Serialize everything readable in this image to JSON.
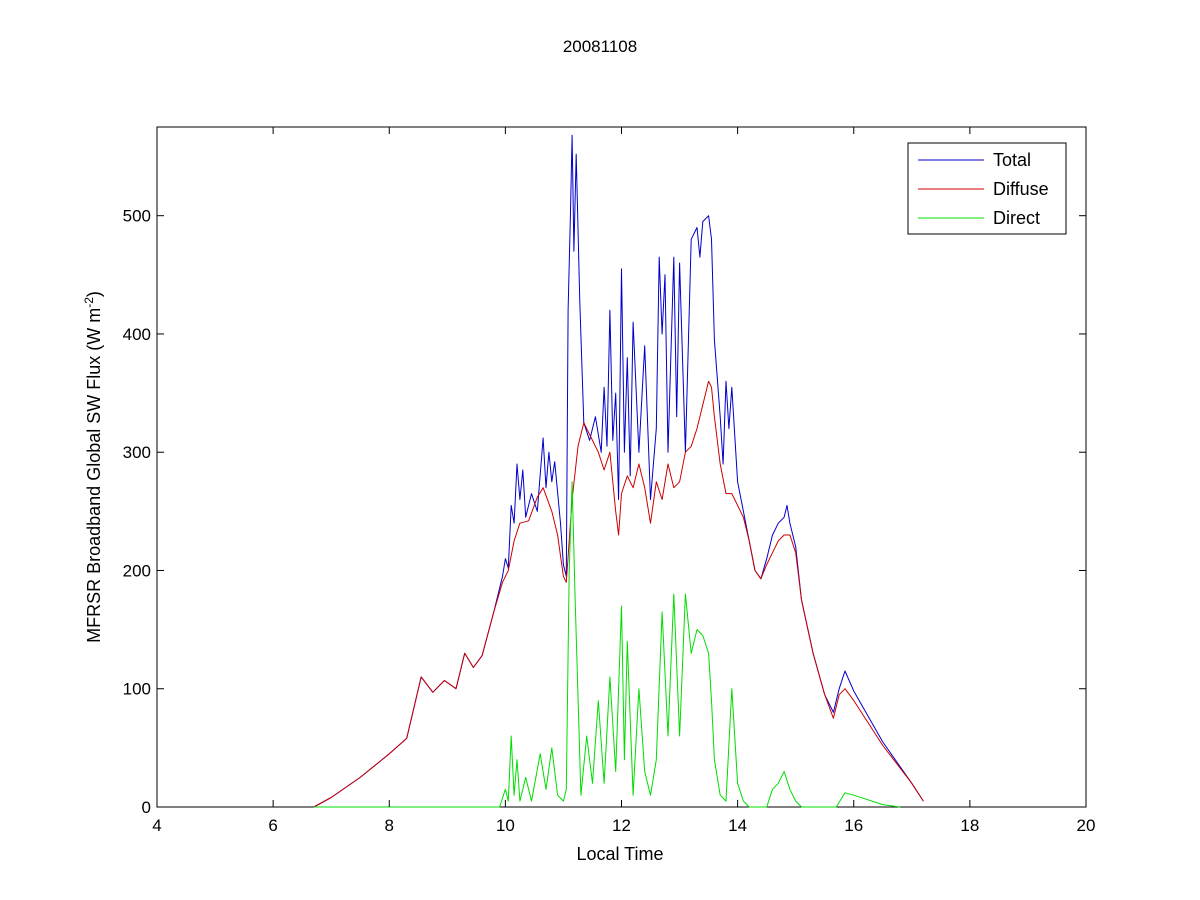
{
  "chart_data": {
    "type": "line",
    "title": "20081108",
    "xlabel": "Local Time",
    "ylabel_main": "MFRSR Broadband Global SW Flux (W m",
    "ylabel_sup": "-2",
    "ylabel_close": ")",
    "xlim": [
      4,
      20
    ],
    "ylim": [
      0,
      575
    ],
    "xticks": [
      4,
      6,
      8,
      10,
      12,
      14,
      16,
      18,
      20
    ],
    "yticks": [
      0,
      100,
      200,
      300,
      400,
      500
    ],
    "grid": false,
    "legend_position": "top-right",
    "series": [
      {
        "name": "Total",
        "color": "#0000cc",
        "points": [
          [
            6.7,
            0
          ],
          [
            7.0,
            8
          ],
          [
            7.5,
            25
          ],
          [
            8.0,
            45
          ],
          [
            8.3,
            58
          ],
          [
            8.55,
            110
          ],
          [
            8.75,
            97
          ],
          [
            8.95,
            107
          ],
          [
            9.15,
            100
          ],
          [
            9.3,
            130
          ],
          [
            9.45,
            118
          ],
          [
            9.6,
            128
          ],
          [
            9.8,
            165
          ],
          [
            9.95,
            195
          ],
          [
            10.0,
            210
          ],
          [
            10.05,
            202
          ],
          [
            10.1,
            255
          ],
          [
            10.15,
            240
          ],
          [
            10.2,
            290
          ],
          [
            10.25,
            260
          ],
          [
            10.3,
            285
          ],
          [
            10.35,
            245
          ],
          [
            10.45,
            265
          ],
          [
            10.55,
            250
          ],
          [
            10.65,
            312
          ],
          [
            10.7,
            270
          ],
          [
            10.75,
            300
          ],
          [
            10.8,
            275
          ],
          [
            10.85,
            292
          ],
          [
            10.95,
            240
          ],
          [
            11.0,
            205
          ],
          [
            11.05,
            195
          ],
          [
            11.08,
            420
          ],
          [
            11.12,
            500
          ],
          [
            11.15,
            568
          ],
          [
            11.18,
            470
          ],
          [
            11.22,
            552
          ],
          [
            11.28,
            430
          ],
          [
            11.35,
            325
          ],
          [
            11.45,
            310
          ],
          [
            11.55,
            330
          ],
          [
            11.65,
            300
          ],
          [
            11.7,
            355
          ],
          [
            11.75,
            305
          ],
          [
            11.8,
            420
          ],
          [
            11.85,
            310
          ],
          [
            11.9,
            350
          ],
          [
            11.95,
            260
          ],
          [
            12.0,
            455
          ],
          [
            12.05,
            300
          ],
          [
            12.1,
            380
          ],
          [
            12.15,
            280
          ],
          [
            12.2,
            410
          ],
          [
            12.3,
            300
          ],
          [
            12.4,
            390
          ],
          [
            12.5,
            260
          ],
          [
            12.6,
            320
          ],
          [
            12.65,
            465
          ],
          [
            12.7,
            400
          ],
          [
            12.75,
            450
          ],
          [
            12.8,
            300
          ],
          [
            12.9,
            465
          ],
          [
            12.95,
            330
          ],
          [
            13.0,
            460
          ],
          [
            13.1,
            300
          ],
          [
            13.2,
            480
          ],
          [
            13.3,
            490
          ],
          [
            13.35,
            465
          ],
          [
            13.4,
            495
          ],
          [
            13.5,
            500
          ],
          [
            13.55,
            480
          ],
          [
            13.6,
            395
          ],
          [
            13.7,
            330
          ],
          [
            13.75,
            290
          ],
          [
            13.8,
            360
          ],
          [
            13.85,
            320
          ],
          [
            13.9,
            355
          ],
          [
            14.0,
            275
          ],
          [
            14.1,
            250
          ],
          [
            14.2,
            225
          ],
          [
            14.3,
            200
          ],
          [
            14.4,
            193
          ],
          [
            14.5,
            210
          ],
          [
            14.6,
            230
          ],
          [
            14.7,
            240
          ],
          [
            14.8,
            245
          ],
          [
            14.85,
            255
          ],
          [
            14.9,
            240
          ],
          [
            15.0,
            220
          ],
          [
            15.1,
            175
          ],
          [
            15.3,
            130
          ],
          [
            15.5,
            95
          ],
          [
            15.65,
            80
          ],
          [
            15.75,
            100
          ],
          [
            15.85,
            115
          ],
          [
            16.0,
            98
          ],
          [
            16.5,
            55
          ],
          [
            17.0,
            20
          ],
          [
            17.2,
            5
          ]
        ]
      },
      {
        "name": "Diffuse",
        "color": "#cc0000",
        "points": [
          [
            6.7,
            0
          ],
          [
            7.0,
            8
          ],
          [
            7.5,
            25
          ],
          [
            8.0,
            45
          ],
          [
            8.3,
            58
          ],
          [
            8.55,
            110
          ],
          [
            8.75,
            97
          ],
          [
            8.95,
            107
          ],
          [
            9.15,
            100
          ],
          [
            9.3,
            130
          ],
          [
            9.45,
            118
          ],
          [
            9.6,
            128
          ],
          [
            9.8,
            165
          ],
          [
            9.95,
            190
          ],
          [
            10.05,
            200
          ],
          [
            10.15,
            225
          ],
          [
            10.25,
            240
          ],
          [
            10.4,
            242
          ],
          [
            10.55,
            262
          ],
          [
            10.65,
            270
          ],
          [
            10.8,
            250
          ],
          [
            10.9,
            230
          ],
          [
            11.0,
            195
          ],
          [
            11.05,
            190
          ],
          [
            11.15,
            260
          ],
          [
            11.25,
            305
          ],
          [
            11.35,
            325
          ],
          [
            11.5,
            310
          ],
          [
            11.6,
            300
          ],
          [
            11.7,
            285
          ],
          [
            11.8,
            300
          ],
          [
            11.9,
            250
          ],
          [
            11.95,
            230
          ],
          [
            12.0,
            265
          ],
          [
            12.1,
            280
          ],
          [
            12.2,
            270
          ],
          [
            12.3,
            290
          ],
          [
            12.4,
            270
          ],
          [
            12.5,
            240
          ],
          [
            12.6,
            275
          ],
          [
            12.7,
            260
          ],
          [
            12.8,
            290
          ],
          [
            12.9,
            270
          ],
          [
            13.0,
            275
          ],
          [
            13.1,
            300
          ],
          [
            13.2,
            305
          ],
          [
            13.3,
            320
          ],
          [
            13.4,
            340
          ],
          [
            13.5,
            360
          ],
          [
            13.55,
            355
          ],
          [
            13.6,
            330
          ],
          [
            13.7,
            290
          ],
          [
            13.8,
            265
          ],
          [
            13.9,
            265
          ],
          [
            14.0,
            255
          ],
          [
            14.1,
            245
          ],
          [
            14.2,
            225
          ],
          [
            14.3,
            200
          ],
          [
            14.4,
            193
          ],
          [
            14.5,
            205
          ],
          [
            14.6,
            215
          ],
          [
            14.7,
            225
          ],
          [
            14.8,
            230
          ],
          [
            14.9,
            230
          ],
          [
            15.0,
            215
          ],
          [
            15.1,
            175
          ],
          [
            15.3,
            130
          ],
          [
            15.5,
            95
          ],
          [
            15.65,
            75
          ],
          [
            15.75,
            95
          ],
          [
            15.85,
            100
          ],
          [
            16.0,
            90
          ],
          [
            16.5,
            52
          ],
          [
            17.0,
            20
          ],
          [
            17.2,
            5
          ]
        ]
      },
      {
        "name": "Direct",
        "color": "#00dd00",
        "points": [
          [
            6.7,
            0
          ],
          [
            9.9,
            0
          ],
          [
            10.0,
            15
          ],
          [
            10.05,
            5
          ],
          [
            10.1,
            60
          ],
          [
            10.15,
            10
          ],
          [
            10.2,
            40
          ],
          [
            10.25,
            5
          ],
          [
            10.35,
            25
          ],
          [
            10.45,
            5
          ],
          [
            10.6,
            45
          ],
          [
            10.7,
            15
          ],
          [
            10.8,
            50
          ],
          [
            10.9,
            10
          ],
          [
            11.0,
            5
          ],
          [
            11.05,
            15
          ],
          [
            11.1,
            200
          ],
          [
            11.15,
            275
          ],
          [
            11.2,
            180
          ],
          [
            11.3,
            10
          ],
          [
            11.4,
            60
          ],
          [
            11.5,
            20
          ],
          [
            11.6,
            90
          ],
          [
            11.7,
            20
          ],
          [
            11.8,
            110
          ],
          [
            11.9,
            30
          ],
          [
            12.0,
            170
          ],
          [
            12.05,
            40
          ],
          [
            12.1,
            140
          ],
          [
            12.2,
            10
          ],
          [
            12.3,
            100
          ],
          [
            12.4,
            30
          ],
          [
            12.5,
            10
          ],
          [
            12.6,
            40
          ],
          [
            12.7,
            165
          ],
          [
            12.8,
            60
          ],
          [
            12.9,
            180
          ],
          [
            13.0,
            60
          ],
          [
            13.1,
            180
          ],
          [
            13.2,
            130
          ],
          [
            13.3,
            150
          ],
          [
            13.4,
            145
          ],
          [
            13.5,
            130
          ],
          [
            13.55,
            90
          ],
          [
            13.6,
            40
          ],
          [
            13.7,
            10
          ],
          [
            13.8,
            5
          ],
          [
            13.9,
            100
          ],
          [
            14.0,
            20
          ],
          [
            14.1,
            5
          ],
          [
            14.2,
            0
          ],
          [
            14.5,
            0
          ],
          [
            14.6,
            15
          ],
          [
            14.7,
            20
          ],
          [
            14.8,
            30
          ],
          [
            14.9,
            15
          ],
          [
            15.0,
            5
          ],
          [
            15.1,
            0
          ],
          [
            15.7,
            0
          ],
          [
            15.85,
            12
          ],
          [
            16.0,
            10
          ],
          [
            16.5,
            2
          ],
          [
            16.8,
            0
          ]
        ]
      }
    ]
  }
}
